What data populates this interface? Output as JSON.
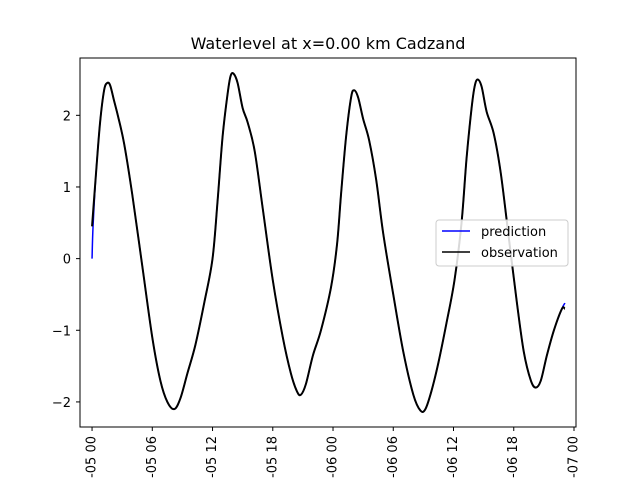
{
  "chart_data": {
    "type": "line",
    "title": "Waterlevel at x=0.00 km Cadzand",
    "xlabel": "",
    "ylabel": "",
    "x_unit": "hours since 05 00 tick",
    "xlim": [
      -1.2,
      48.2
    ],
    "ylim": [
      -2.35,
      2.8
    ],
    "x_ticks": [
      {
        "x": 0,
        "label": "-05 00"
      },
      {
        "x": 6,
        "label": "-05 06"
      },
      {
        "x": 12,
        "label": "-05 12"
      },
      {
        "x": 18,
        "label": "-05 18"
      },
      {
        "x": 24,
        "label": "-06 00"
      },
      {
        "x": 30,
        "label": "-06 06"
      },
      {
        "x": 36,
        "label": "-06 12"
      },
      {
        "x": 42,
        "label": "-06 18"
      },
      {
        "x": 48,
        "label": "-07 00"
      }
    ],
    "y_ticks": [
      {
        "y": -2,
        "label": "−2"
      },
      {
        "y": -1,
        "label": "−1"
      },
      {
        "y": 0,
        "label": "0"
      },
      {
        "y": 1,
        "label": "1"
      },
      {
        "y": 2,
        "label": "2"
      }
    ],
    "grid": false,
    "legend": {
      "position": "center-right"
    },
    "series": [
      {
        "name": "prediction",
        "color": "#0000ff",
        "points": [
          [
            0,
            0.0
          ],
          [
            0.1,
            0.45
          ],
          [
            0.4,
            1.2
          ],
          [
            0.8,
            1.9
          ],
          [
            1.2,
            2.35
          ],
          [
            1.5,
            2.45
          ],
          [
            1.8,
            2.42
          ],
          [
            2.2,
            2.2
          ],
          [
            2.6,
            1.98
          ],
          [
            3.2,
            1.6
          ],
          [
            4.0,
            0.9
          ],
          [
            5.0,
            -0.1
          ],
          [
            6.0,
            -1.1
          ],
          [
            6.8,
            -1.7
          ],
          [
            7.5,
            -2.0
          ],
          [
            8.2,
            -2.1
          ],
          [
            8.8,
            -1.95
          ],
          [
            9.5,
            -1.6
          ],
          [
            10.3,
            -1.2
          ],
          [
            11.2,
            -0.6
          ],
          [
            12.0,
            0.0
          ],
          [
            12.5,
            0.8
          ],
          [
            13.0,
            1.7
          ],
          [
            13.5,
            2.3
          ],
          [
            13.8,
            2.55
          ],
          [
            14.1,
            2.58
          ],
          [
            14.5,
            2.45
          ],
          [
            15.0,
            2.1
          ],
          [
            15.5,
            1.9
          ],
          [
            16.2,
            1.5
          ],
          [
            17.0,
            0.7
          ],
          [
            18.0,
            -0.3
          ],
          [
            19.0,
            -1.1
          ],
          [
            19.8,
            -1.6
          ],
          [
            20.4,
            -1.85
          ],
          [
            20.8,
            -1.9
          ],
          [
            21.3,
            -1.75
          ],
          [
            22.0,
            -1.35
          ],
          [
            22.8,
            -1.0
          ],
          [
            23.8,
            -0.4
          ],
          [
            24.4,
            0.2
          ],
          [
            24.8,
            0.9
          ],
          [
            25.3,
            1.7
          ],
          [
            25.8,
            2.25
          ],
          [
            26.1,
            2.35
          ],
          [
            26.5,
            2.25
          ],
          [
            27.0,
            1.95
          ],
          [
            27.6,
            1.65
          ],
          [
            28.3,
            1.1
          ],
          [
            29.0,
            0.35
          ],
          [
            30.0,
            -0.5
          ],
          [
            31.0,
            -1.3
          ],
          [
            32.0,
            -1.9
          ],
          [
            32.7,
            -2.12
          ],
          [
            33.2,
            -2.1
          ],
          [
            33.8,
            -1.85
          ],
          [
            34.5,
            -1.45
          ],
          [
            35.3,
            -0.9
          ],
          [
            36.1,
            -0.3
          ],
          [
            36.8,
            0.5
          ],
          [
            37.3,
            1.4
          ],
          [
            37.8,
            2.1
          ],
          [
            38.1,
            2.4
          ],
          [
            38.4,
            2.5
          ],
          [
            38.8,
            2.4
          ],
          [
            39.3,
            2.05
          ],
          [
            40.0,
            1.75
          ],
          [
            40.7,
            1.2
          ],
          [
            41.5,
            0.3
          ],
          [
            42.3,
            -0.6
          ],
          [
            43.0,
            -1.3
          ],
          [
            43.7,
            -1.7
          ],
          [
            44.2,
            -1.8
          ],
          [
            44.7,
            -1.7
          ],
          [
            45.3,
            -1.35
          ],
          [
            46.0,
            -1.0
          ],
          [
            46.8,
            -0.7
          ],
          [
            47.1,
            -0.62
          ]
        ]
      },
      {
        "name": "observation",
        "color": "#000000",
        "points": [
          [
            0,
            0.45
          ],
          [
            0.4,
            1.2
          ],
          [
            0.8,
            1.9
          ],
          [
            1.2,
            2.35
          ],
          [
            1.5,
            2.45
          ],
          [
            1.8,
            2.42
          ],
          [
            2.2,
            2.2
          ],
          [
            2.6,
            1.98
          ],
          [
            3.2,
            1.6
          ],
          [
            4.0,
            0.9
          ],
          [
            5.0,
            -0.1
          ],
          [
            6.0,
            -1.1
          ],
          [
            6.8,
            -1.7
          ],
          [
            7.5,
            -2.0
          ],
          [
            8.2,
            -2.1
          ],
          [
            8.8,
            -1.95
          ],
          [
            9.5,
            -1.6
          ],
          [
            10.3,
            -1.2
          ],
          [
            11.2,
            -0.6
          ],
          [
            12.0,
            0.0
          ],
          [
            12.5,
            0.8
          ],
          [
            13.0,
            1.7
          ],
          [
            13.5,
            2.3
          ],
          [
            13.8,
            2.55
          ],
          [
            14.1,
            2.58
          ],
          [
            14.5,
            2.45
          ],
          [
            15.0,
            2.1
          ],
          [
            15.5,
            1.9
          ],
          [
            16.2,
            1.5
          ],
          [
            17.0,
            0.7
          ],
          [
            18.0,
            -0.3
          ],
          [
            19.0,
            -1.1
          ],
          [
            19.8,
            -1.6
          ],
          [
            20.4,
            -1.85
          ],
          [
            20.8,
            -1.9
          ],
          [
            21.3,
            -1.75
          ],
          [
            22.0,
            -1.35
          ],
          [
            22.8,
            -1.0
          ],
          [
            23.8,
            -0.4
          ],
          [
            24.4,
            0.2
          ],
          [
            24.8,
            0.9
          ],
          [
            25.3,
            1.7
          ],
          [
            25.8,
            2.25
          ],
          [
            26.1,
            2.35
          ],
          [
            26.5,
            2.25
          ],
          [
            27.0,
            1.95
          ],
          [
            27.6,
            1.65
          ],
          [
            28.3,
            1.1
          ],
          [
            29.0,
            0.35
          ],
          [
            30.0,
            -0.5
          ],
          [
            31.0,
            -1.3
          ],
          [
            32.0,
            -1.9
          ],
          [
            32.7,
            -2.12
          ],
          [
            33.2,
            -2.1
          ],
          [
            33.8,
            -1.85
          ],
          [
            34.5,
            -1.45
          ],
          [
            35.3,
            -0.9
          ],
          [
            36.1,
            -0.3
          ],
          [
            36.8,
            0.5
          ],
          [
            37.3,
            1.4
          ],
          [
            37.8,
            2.1
          ],
          [
            38.1,
            2.4
          ],
          [
            38.4,
            2.5
          ],
          [
            38.8,
            2.4
          ],
          [
            39.3,
            2.05
          ],
          [
            40.0,
            1.75
          ],
          [
            40.7,
            1.2
          ],
          [
            41.5,
            0.3
          ],
          [
            42.3,
            -0.6
          ],
          [
            43.0,
            -1.3
          ],
          [
            43.7,
            -1.7
          ],
          [
            44.2,
            -1.8
          ],
          [
            44.7,
            -1.7
          ],
          [
            45.3,
            -1.35
          ],
          [
            46.0,
            -1.0
          ],
          [
            46.8,
            -0.7
          ],
          [
            47.1,
            -0.7
          ]
        ]
      }
    ]
  }
}
